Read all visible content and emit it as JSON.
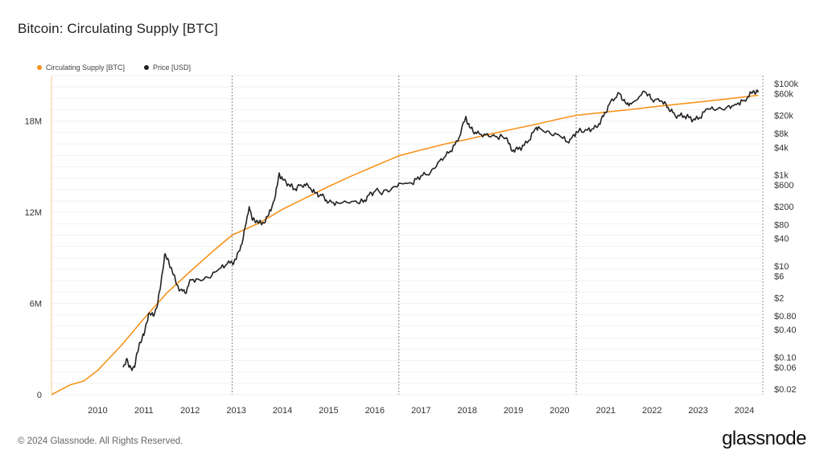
{
  "header": {
    "title": "Bitcoin: Circulating Supply [BTC]"
  },
  "legend": [
    {
      "label": "Circulating Supply [BTC]",
      "color": "#f7931a"
    },
    {
      "label": "Price [USD]",
      "color": "#222222"
    }
  ],
  "footer": {
    "copyright": "© 2024 Glassnode. All Rights Reserved.",
    "brand": "glassnode"
  },
  "chart_data": {
    "type": "line",
    "title": "Bitcoin: Circulating Supply [BTC]",
    "x_range": [
      2009.0,
      2024.4
    ],
    "x_ticks": [
      "2010",
      "2011",
      "2012",
      "2013",
      "2014",
      "2015",
      "2016",
      "2017",
      "2018",
      "2019",
      "2020",
      "2021",
      "2022",
      "2023",
      "2024"
    ],
    "y_left": {
      "ticks": [
        "0",
        "6M",
        "12M",
        "18M"
      ],
      "tick_values": [
        0,
        6000000,
        12000000,
        18000000
      ],
      "range": [
        0,
        21000000
      ]
    },
    "y_right": {
      "scale": "log",
      "ticks": [
        "$100k",
        "$60k",
        "$20k",
        "$8k",
        "$4k",
        "$1k",
        "$600",
        "$200",
        "$80",
        "$40",
        "$10",
        "$6",
        "$2",
        "$0.80",
        "$0.40",
        "$0.10",
        "$0.06",
        "$0.02"
      ],
      "tick_values": [
        100000,
        60000,
        20000,
        8000,
        4000,
        1000,
        600,
        200,
        80,
        40,
        10,
        6,
        2,
        0.8,
        0.4,
        0.1,
        0.06,
        0.02
      ],
      "range": [
        0.015,
        150000
      ]
    },
    "halvings": [
      2012.91,
      2016.52,
      2020.36
    ],
    "series": [
      {
        "name": "Circulating Supply [BTC]",
        "color": "#f7931a",
        "axis": "left",
        "points": [
          [
            2009.0,
            0
          ],
          [
            2009.4,
            640000
          ],
          [
            2009.7,
            900000
          ],
          [
            2010.0,
            1600000
          ],
          [
            2010.5,
            3200000
          ],
          [
            2011.0,
            5000000
          ],
          [
            2011.5,
            6700000
          ],
          [
            2012.0,
            8100000
          ],
          [
            2012.5,
            9450000
          ],
          [
            2012.91,
            10500000
          ],
          [
            2013.5,
            11300000
          ],
          [
            2014.0,
            12200000
          ],
          [
            2014.5,
            12950000
          ],
          [
            2015.0,
            13700000
          ],
          [
            2015.5,
            14400000
          ],
          [
            2016.0,
            15050000
          ],
          [
            2016.52,
            15720000
          ],
          [
            2017.0,
            16100000
          ],
          [
            2017.5,
            16480000
          ],
          [
            2018.0,
            16800000
          ],
          [
            2018.5,
            17150000
          ],
          [
            2019.0,
            17480000
          ],
          [
            2019.5,
            17800000
          ],
          [
            2020.0,
            18150000
          ],
          [
            2020.36,
            18380000
          ],
          [
            2021.0,
            18600000
          ],
          [
            2021.5,
            18750000
          ],
          [
            2022.0,
            18930000
          ],
          [
            2022.5,
            19100000
          ],
          [
            2023.0,
            19250000
          ],
          [
            2023.5,
            19420000
          ],
          [
            2024.0,
            19600000
          ],
          [
            2024.3,
            19700000
          ]
        ]
      },
      {
        "name": "Price [USD]",
        "color": "#222222",
        "axis": "right",
        "points": [
          [
            2010.55,
            0.06
          ],
          [
            2010.62,
            0.09
          ],
          [
            2010.68,
            0.06
          ],
          [
            2010.8,
            0.06
          ],
          [
            2010.9,
            0.2
          ],
          [
            2011.0,
            0.3
          ],
          [
            2011.1,
            0.9
          ],
          [
            2011.2,
            0.8
          ],
          [
            2011.3,
            1.5
          ],
          [
            2011.35,
            3
          ],
          [
            2011.45,
            18
          ],
          [
            2011.5,
            14
          ],
          [
            2011.6,
            9
          ],
          [
            2011.7,
            4
          ],
          [
            2011.8,
            3
          ],
          [
            2011.9,
            2.5
          ],
          [
            2012.0,
            5
          ],
          [
            2012.2,
            5
          ],
          [
            2012.4,
            5.5
          ],
          [
            2012.6,
            8
          ],
          [
            2012.8,
            11
          ],
          [
            2012.91,
            12
          ],
          [
            2013.0,
            14
          ],
          [
            2013.15,
            40
          ],
          [
            2013.28,
            200
          ],
          [
            2013.35,
            100
          ],
          [
            2013.45,
            100
          ],
          [
            2013.55,
            80
          ],
          [
            2013.7,
            130
          ],
          [
            2013.85,
            350
          ],
          [
            2013.93,
            1100
          ],
          [
            2014.0,
            800
          ],
          [
            2014.15,
            600
          ],
          [
            2014.25,
            480
          ],
          [
            2014.4,
            600
          ],
          [
            2014.55,
            600
          ],
          [
            2014.7,
            400
          ],
          [
            2014.85,
            350
          ],
          [
            2015.0,
            250
          ],
          [
            2015.2,
            240
          ],
          [
            2015.5,
            260
          ],
          [
            2015.75,
            250
          ],
          [
            2015.85,
            350
          ],
          [
            2016.0,
            430
          ],
          [
            2016.3,
            420
          ],
          [
            2016.52,
            650
          ],
          [
            2016.8,
            650
          ],
          [
            2017.0,
            950
          ],
          [
            2017.2,
            1100
          ],
          [
            2017.4,
            2000
          ],
          [
            2017.6,
            3000
          ],
          [
            2017.8,
            5500
          ],
          [
            2017.97,
            19000
          ],
          [
            2018.05,
            11000
          ],
          [
            2018.2,
            8000
          ],
          [
            2018.4,
            7500
          ],
          [
            2018.6,
            7000
          ],
          [
            2018.85,
            6500
          ],
          [
            2018.95,
            3500
          ],
          [
            2019.1,
            3600
          ],
          [
            2019.3,
            5000
          ],
          [
            2019.5,
            11000
          ],
          [
            2019.6,
            10000
          ],
          [
            2019.8,
            8000
          ],
          [
            2020.0,
            7200
          ],
          [
            2020.2,
            5000
          ],
          [
            2020.36,
            8800
          ],
          [
            2020.6,
            9500
          ],
          [
            2020.8,
            11000
          ],
          [
            2020.95,
            19000
          ],
          [
            2021.1,
            40000
          ],
          [
            2021.3,
            60000
          ],
          [
            2021.45,
            35000
          ],
          [
            2021.6,
            40000
          ],
          [
            2021.85,
            66000
          ],
          [
            2022.0,
            45000
          ],
          [
            2022.2,
            42000
          ],
          [
            2022.35,
            30000
          ],
          [
            2022.5,
            20000
          ],
          [
            2022.7,
            19500
          ],
          [
            2022.9,
            16500
          ],
          [
            2023.0,
            16500
          ],
          [
            2023.2,
            28000
          ],
          [
            2023.4,
            27000
          ],
          [
            2023.6,
            29000
          ],
          [
            2023.8,
            35000
          ],
          [
            2024.0,
            43000
          ],
          [
            2024.15,
            62000
          ],
          [
            2024.2,
            70000
          ],
          [
            2024.3,
            64000
          ]
        ]
      }
    ]
  }
}
